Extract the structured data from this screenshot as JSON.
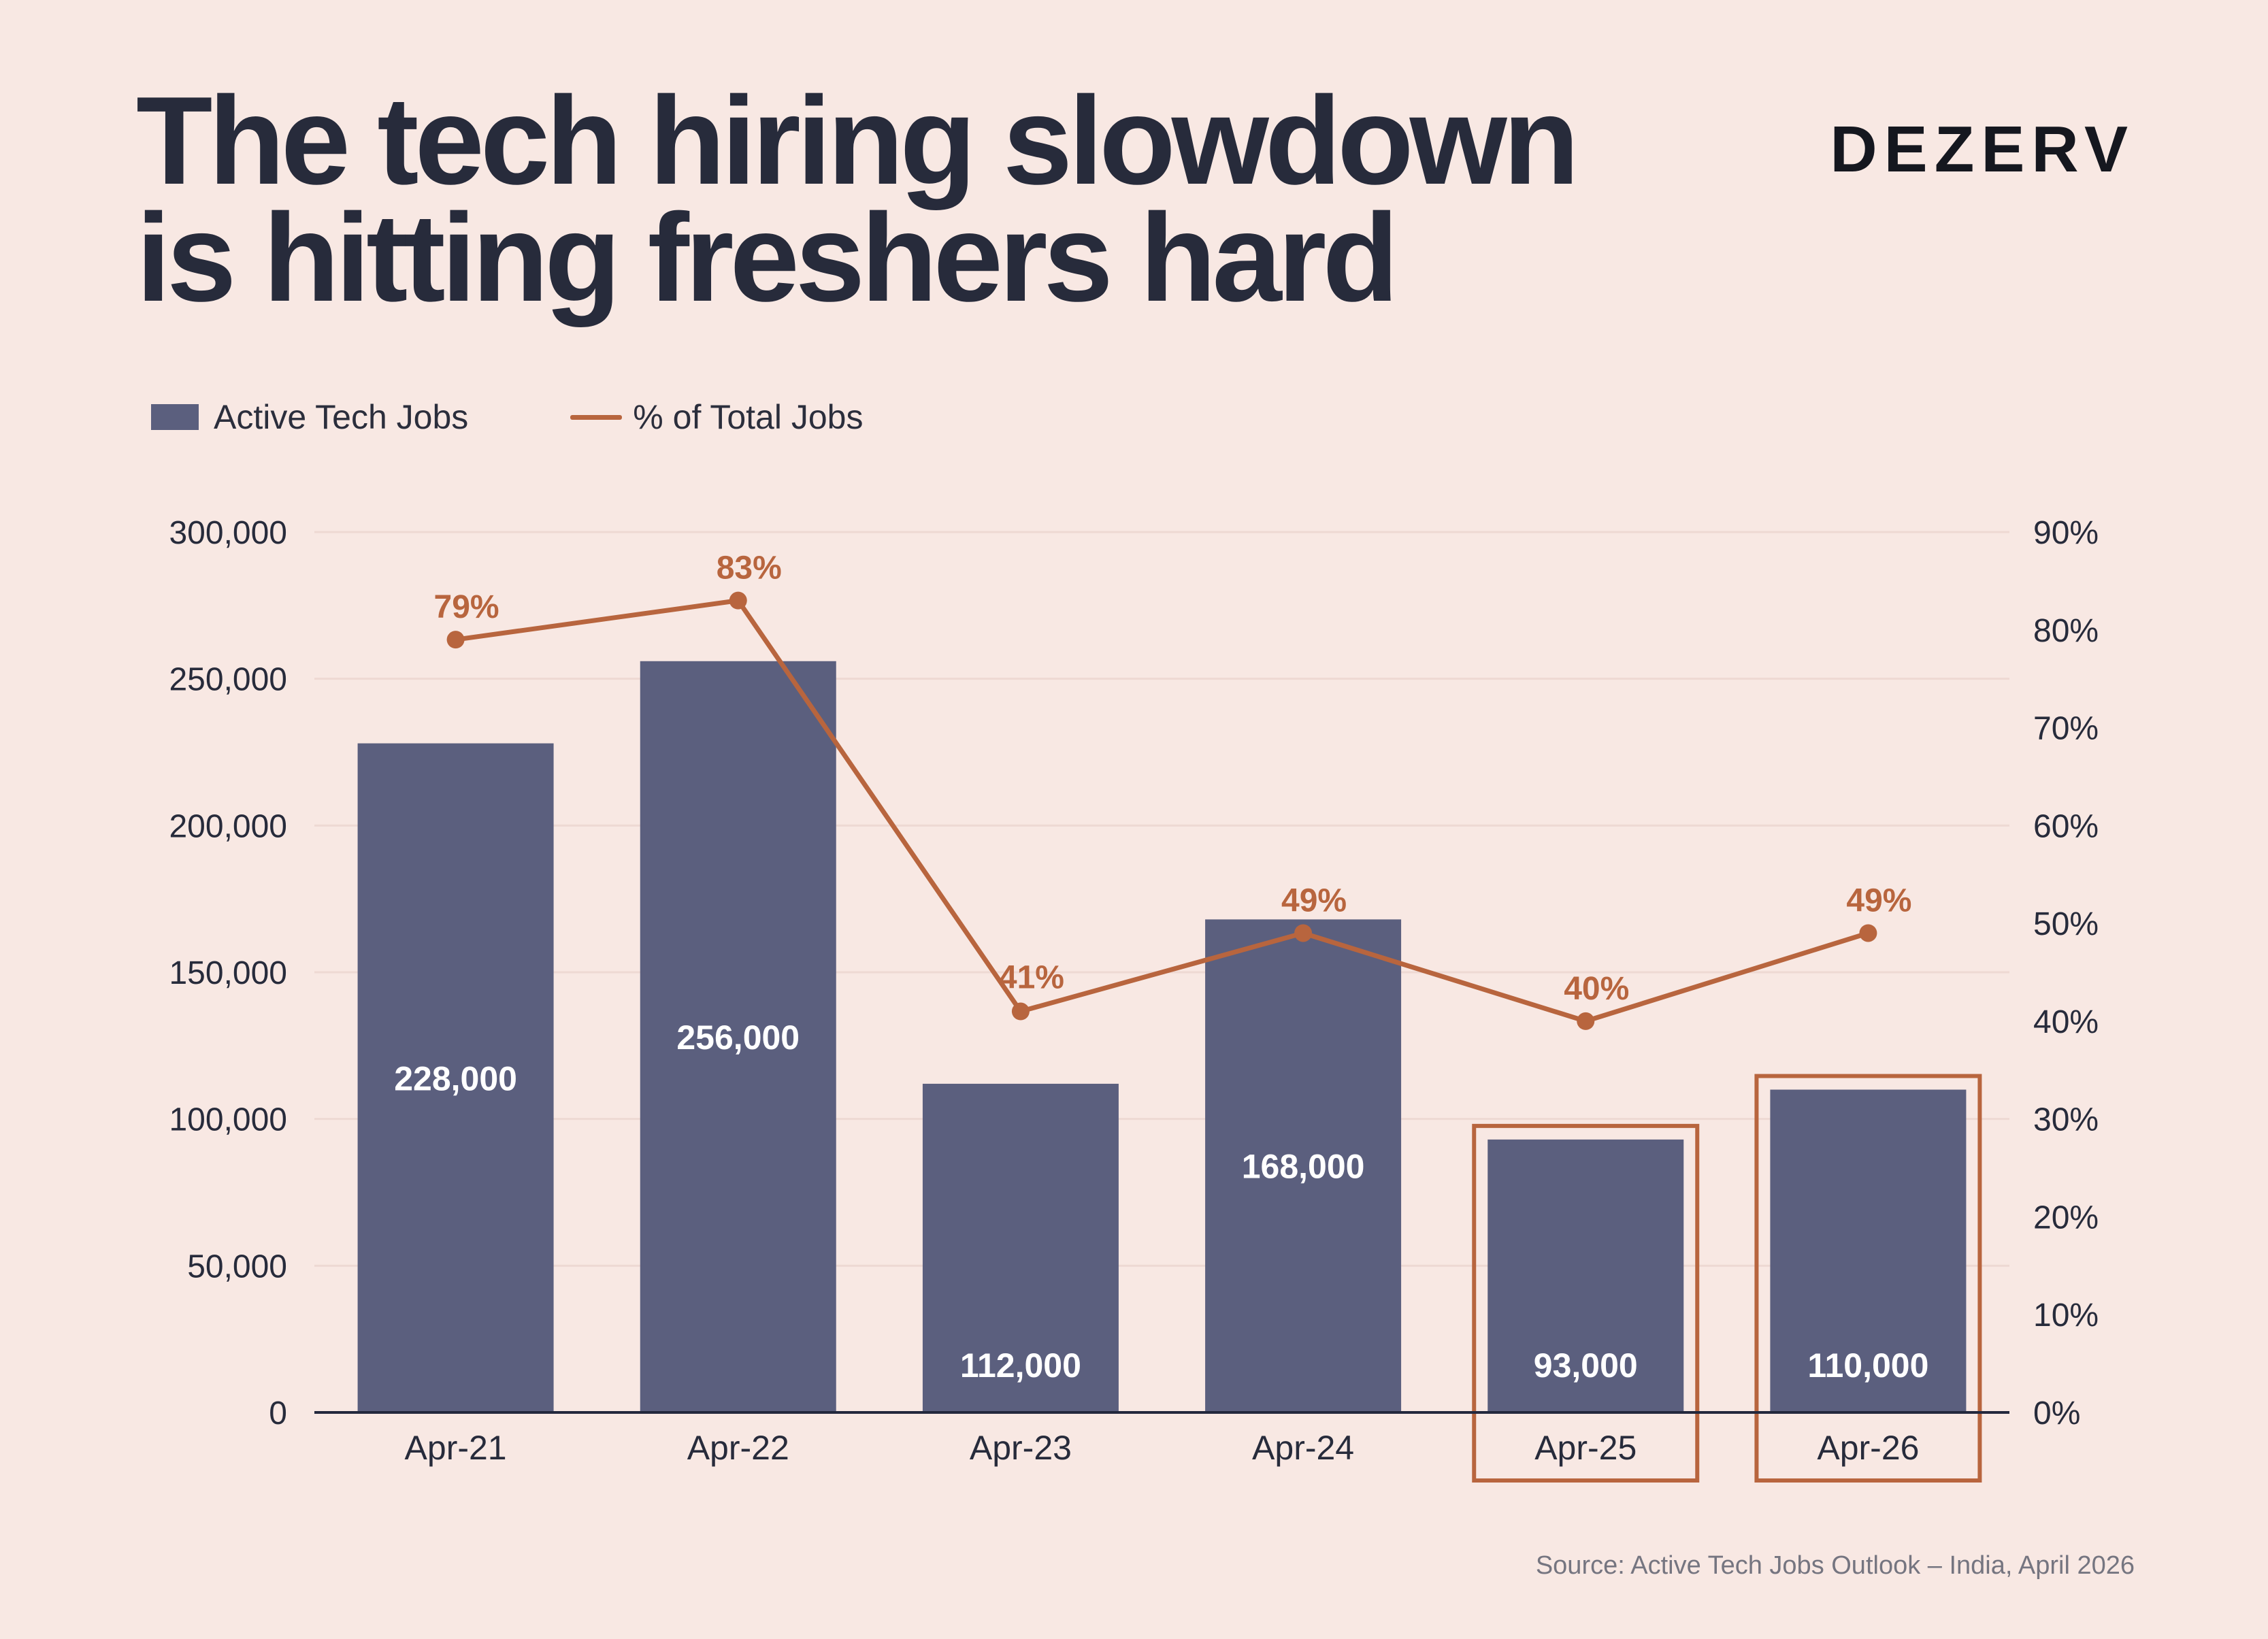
{
  "title_lines": [
    "The tech hiring slowdown",
    "is hitting freshers hard"
  ],
  "brand": "DEZERV",
  "legend": {
    "bars_label": "Active Tech Jobs",
    "line_label": "% of Total Jobs"
  },
  "source": "Source: Active Tech Jobs Outlook – India, April 2026",
  "colors": {
    "background": "#f8e8e3",
    "bar": "#5b5f7e",
    "line": "#b8653e",
    "grid": "#eed9d3",
    "axis": "#23283d",
    "text": "#272b3b"
  },
  "chart_data": {
    "type": "bar",
    "categories": [
      "Apr-21",
      "Apr-22",
      "Apr-23",
      "Apr-24",
      "Apr-25",
      "Apr-26"
    ],
    "series": [
      {
        "name": "Active Tech Jobs",
        "type": "bar",
        "axis": "left",
        "values": [
          228000,
          256000,
          112000,
          168000,
          93000,
          110000
        ],
        "labels": [
          "228,000",
          "256,000",
          "112,000",
          "168,000",
          "93,000",
          "110,000"
        ]
      },
      {
        "name": "% of Total Jobs",
        "type": "line",
        "axis": "right",
        "values": [
          79,
          83,
          41,
          49,
          40,
          49
        ],
        "labels": [
          "79%",
          "83%",
          "41%",
          "49%",
          "40%",
          "49%"
        ]
      }
    ],
    "y_left": {
      "ylim": [
        0,
        300000
      ],
      "ticks": [
        0,
        50000,
        100000,
        150000,
        200000,
        250000,
        300000
      ],
      "tick_labels": [
        "0",
        "50,000",
        "100,000",
        "150,000",
        "200,000",
        "250,000",
        "300,000"
      ]
    },
    "y_right": {
      "ylim": [
        0,
        90
      ],
      "ticks": [
        0,
        10,
        20,
        30,
        40,
        50,
        60,
        70,
        80,
        90
      ],
      "tick_labels": [
        "0%",
        "10%",
        "20%",
        "30%",
        "40%",
        "50%",
        "60%",
        "70%",
        "80%",
        "90%"
      ]
    },
    "highlighted_categories": [
      "Apr-25",
      "Apr-26"
    ],
    "grid": true,
    "legend_position": "top-left"
  }
}
